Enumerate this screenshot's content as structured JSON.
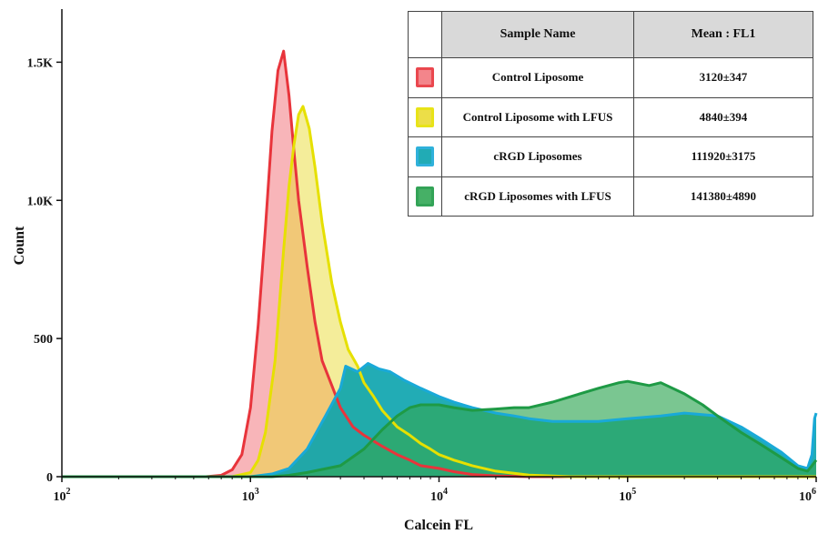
{
  "chart_data": {
    "type": "area",
    "xlabel": "Calcein FL",
    "ylabel": "Count",
    "x_scale": "log",
    "xlim": [
      100,
      1000000
    ],
    "ylim": [
      0,
      1600
    ],
    "x_ticks": [
      {
        "value": 100,
        "base": "10",
        "exp": "2"
      },
      {
        "value": 1000,
        "base": "10",
        "exp": "3"
      },
      {
        "value": 10000,
        "base": "10",
        "exp": "4"
      },
      {
        "value": 100000,
        "base": "10",
        "exp": "5"
      },
      {
        "value": 1000000,
        "base": "10",
        "exp": "6"
      }
    ],
    "y_ticks": [
      {
        "value": 0,
        "label": "0"
      },
      {
        "value": 500,
        "label": "500"
      },
      {
        "value": 1000,
        "label": "1.0K"
      },
      {
        "value": 1500,
        "label": "1.5K"
      }
    ],
    "legend_header": {
      "name": "Sample Name",
      "mean": "Mean : FL1"
    },
    "series": [
      {
        "name": "Control Liposome",
        "mean": "3120±347",
        "line_color": "#e8343b",
        "fill_color": "#f2787f",
        "fill_opacity": 0.55,
        "points": [
          [
            100,
            0
          ],
          [
            580,
            0
          ],
          [
            700,
            5
          ],
          [
            800,
            25
          ],
          [
            900,
            80
          ],
          [
            1000,
            250
          ],
          [
            1100,
            550
          ],
          [
            1200,
            900
          ],
          [
            1300,
            1250
          ],
          [
            1400,
            1470
          ],
          [
            1500,
            1540
          ],
          [
            1600,
            1380
          ],
          [
            1700,
            1180
          ],
          [
            1800,
            1000
          ],
          [
            2000,
            760
          ],
          [
            2200,
            560
          ],
          [
            2400,
            420
          ],
          [
            2700,
            330
          ],
          [
            3000,
            250
          ],
          [
            3500,
            180
          ],
          [
            4000,
            150
          ],
          [
            5000,
            110
          ],
          [
            6000,
            80
          ],
          [
            7000,
            60
          ],
          [
            8000,
            40
          ],
          [
            10000,
            30
          ],
          [
            12000,
            18
          ],
          [
            15000,
            8
          ],
          [
            20000,
            3
          ],
          [
            30000,
            0
          ],
          [
            1000000,
            0
          ]
        ]
      },
      {
        "name": "Control Liposome with LFUS",
        "mean": "4840±394",
        "line_color": "#e6e000",
        "fill_color": "#eadb35",
        "fill_opacity": 0.5,
        "points": [
          [
            100,
            0
          ],
          [
            800,
            0
          ],
          [
            1000,
            15
          ],
          [
            1100,
            60
          ],
          [
            1200,
            160
          ],
          [
            1350,
            420
          ],
          [
            1500,
            820
          ],
          [
            1600,
            1050
          ],
          [
            1700,
            1200
          ],
          [
            1800,
            1310
          ],
          [
            1900,
            1340
          ],
          [
            2050,
            1260
          ],
          [
            2200,
            1120
          ],
          [
            2400,
            920
          ],
          [
            2700,
            700
          ],
          [
            3000,
            560
          ],
          [
            3300,
            460
          ],
          [
            3700,
            400
          ],
          [
            4000,
            340
          ],
          [
            4500,
            290
          ],
          [
            5000,
            240
          ],
          [
            6000,
            180
          ],
          [
            7000,
            150
          ],
          [
            8000,
            120
          ],
          [
            9000,
            100
          ],
          [
            10000,
            80
          ],
          [
            12000,
            60
          ],
          [
            15000,
            40
          ],
          [
            20000,
            20
          ],
          [
            30000,
            6
          ],
          [
            50000,
            0
          ],
          [
            1000000,
            0
          ]
        ]
      },
      {
        "name": "cRGD Liposomes",
        "mean": "111920±3175",
        "line_color": "#19a9d8",
        "fill_color": "#0aa3ad",
        "fill_opacity": 0.9,
        "points": [
          [
            100,
            0
          ],
          [
            1000,
            0
          ],
          [
            1300,
            10
          ],
          [
            1600,
            30
          ],
          [
            2000,
            100
          ],
          [
            2500,
            220
          ],
          [
            3000,
            320
          ],
          [
            3200,
            400
          ],
          [
            3700,
            380
          ],
          [
            4200,
            410
          ],
          [
            4800,
            390
          ],
          [
            5500,
            380
          ],
          [
            6500,
            350
          ],
          [
            8000,
            320
          ],
          [
            10000,
            290
          ],
          [
            12000,
            270
          ],
          [
            15000,
            250
          ],
          [
            20000,
            230
          ],
          [
            25000,
            220
          ],
          [
            30000,
            210
          ],
          [
            40000,
            200
          ],
          [
            50000,
            200
          ],
          [
            70000,
            200
          ],
          [
            100000,
            210
          ],
          [
            150000,
            220
          ],
          [
            200000,
            230
          ],
          [
            300000,
            220
          ],
          [
            400000,
            180
          ],
          [
            500000,
            140
          ],
          [
            650000,
            90
          ],
          [
            800000,
            40
          ],
          [
            900000,
            30
          ],
          [
            950000,
            80
          ],
          [
            980000,
            210
          ],
          [
            1000000,
            230
          ]
        ]
      },
      {
        "name": "cRGD Liposomes with LFUS",
        "mean": "141380±4890",
        "line_color": "#1e9a45",
        "fill_color": "#33a856",
        "fill_opacity": 0.65,
        "points": [
          [
            100,
            0
          ],
          [
            1300,
            0
          ],
          [
            1600,
            5
          ],
          [
            2000,
            15
          ],
          [
            3000,
            40
          ],
          [
            4000,
            100
          ],
          [
            5000,
            170
          ],
          [
            6000,
            220
          ],
          [
            7000,
            250
          ],
          [
            8000,
            260
          ],
          [
            10000,
            260
          ],
          [
            12000,
            250
          ],
          [
            15000,
            240
          ],
          [
            20000,
            245
          ],
          [
            25000,
            250
          ],
          [
            30000,
            250
          ],
          [
            40000,
            270
          ],
          [
            50000,
            290
          ],
          [
            70000,
            320
          ],
          [
            90000,
            340
          ],
          [
            100000,
            345
          ],
          [
            130000,
            330
          ],
          [
            150000,
            340
          ],
          [
            200000,
            300
          ],
          [
            250000,
            260
          ],
          [
            300000,
            220
          ],
          [
            400000,
            160
          ],
          [
            500000,
            120
          ],
          [
            650000,
            70
          ],
          [
            800000,
            30
          ],
          [
            900000,
            20
          ],
          [
            950000,
            40
          ],
          [
            1000000,
            60
          ]
        ]
      }
    ]
  }
}
